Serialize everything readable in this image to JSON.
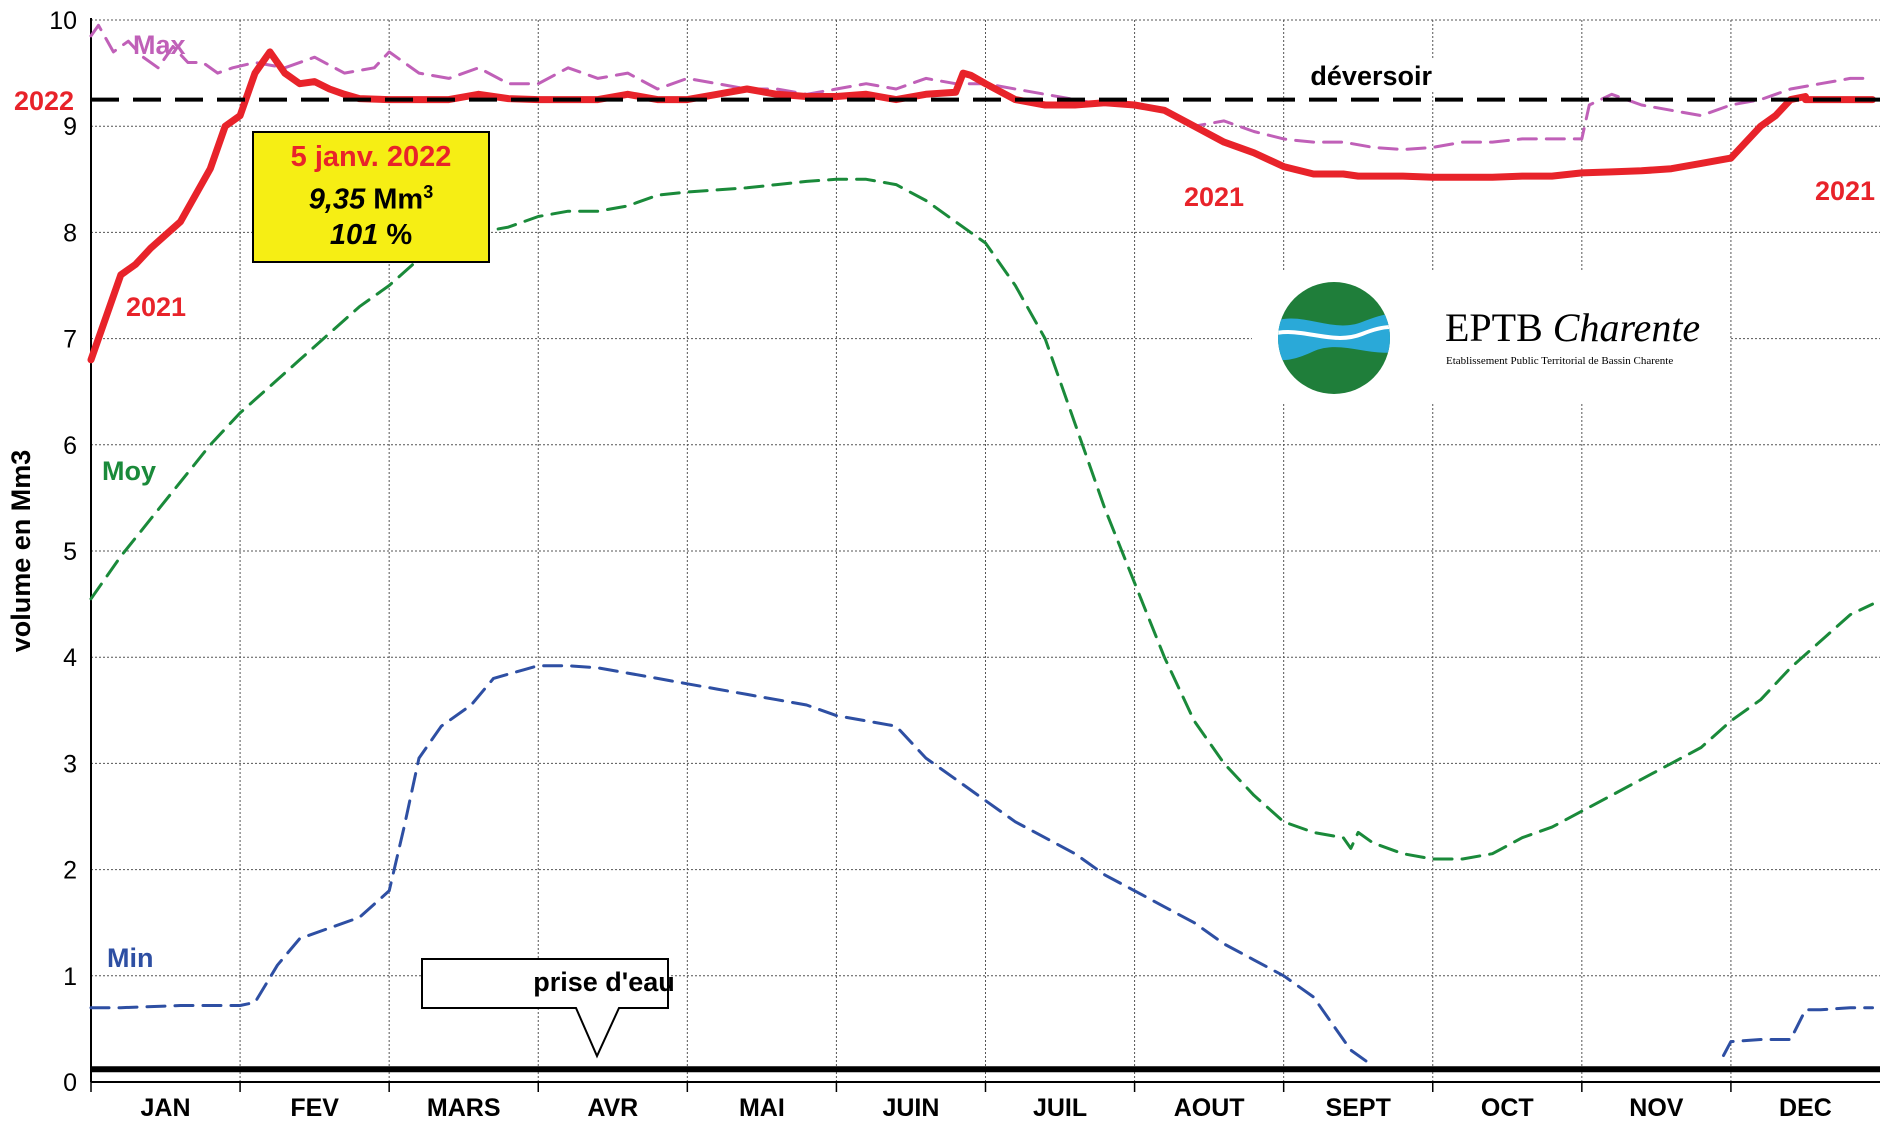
{
  "chart_data": {
    "type": "line",
    "ylabel": "volume en Mm3",
    "ylim": [
      0,
      10
    ],
    "yticks": [
      "0",
      "1",
      "2",
      "3",
      "4",
      "5",
      "6",
      "7",
      "8",
      "9",
      "10"
    ],
    "months": [
      "JAN",
      "FEV",
      "MARS",
      "AVR",
      "MAI",
      "JUIN",
      "JUIL",
      "AOUT",
      "SEPT",
      "OCT",
      "NOV",
      "DEC"
    ],
    "grid": true,
    "reference_lines": [
      {
        "label": "déversoir",
        "y": 9.25,
        "color": "#000000",
        "style": "dashed"
      },
      {
        "label": "prise d'eau",
        "y": 0.12,
        "color": "#000000",
        "style": "solid"
      }
    ],
    "series": [
      {
        "name": "Max",
        "color": "#c060b8",
        "style": "dashed",
        "x": [
          0.0,
          0.05,
          0.15,
          0.25,
          0.35,
          0.45,
          0.55,
          0.65,
          0.75,
          0.85,
          0.95,
          1.1,
          1.3,
          1.5,
          1.7,
          1.9,
          2.0,
          2.2,
          2.4,
          2.6,
          2.8,
          3.0,
          3.2,
          3.4,
          3.6,
          3.8,
          4.0,
          4.2,
          4.4,
          4.6,
          4.8,
          5.0,
          5.2,
          5.4,
          5.6,
          5.8,
          6.0,
          6.2,
          6.4,
          6.6,
          6.8,
          7.0,
          7.2,
          7.4,
          7.6,
          7.8,
          8.0,
          8.05,
          8.2,
          8.4,
          8.6,
          8.8,
          9.0,
          9.2,
          9.4,
          9.6,
          9.8,
          10.0,
          10.05,
          10.2,
          10.4,
          10.6,
          10.8,
          11.0,
          11.2,
          11.4,
          11.6,
          11.8,
          11.9
        ],
        "values": [
          9.85,
          9.95,
          9.7,
          9.8,
          9.65,
          9.55,
          9.75,
          9.6,
          9.6,
          9.5,
          9.55,
          9.6,
          9.55,
          9.65,
          9.5,
          9.55,
          9.7,
          9.5,
          9.45,
          9.55,
          9.4,
          9.4,
          9.55,
          9.45,
          9.5,
          9.35,
          9.45,
          9.4,
          9.35,
          9.35,
          9.3,
          9.35,
          9.4,
          9.35,
          9.45,
          9.4,
          9.4,
          9.35,
          9.3,
          9.25,
          9.2,
          9.2,
          9.15,
          9.0,
          9.05,
          8.95,
          8.88,
          8.87,
          8.85,
          8.85,
          8.8,
          8.78,
          8.8,
          8.85,
          8.85,
          8.88,
          8.88,
          8.88,
          9.2,
          9.3,
          9.2,
          9.15,
          9.1,
          9.2,
          9.25,
          9.35,
          9.4,
          9.45,
          9.45
        ]
      },
      {
        "name": "Moy",
        "color": "#1a8a3a",
        "style": "dashed",
        "x": [
          0.0,
          0.2,
          0.4,
          0.6,
          0.8,
          1.0,
          1.2,
          1.4,
          1.6,
          1.8,
          2.0,
          2.2,
          2.4,
          2.6,
          2.8,
          3.0,
          3.2,
          3.4,
          3.6,
          3.8,
          4.0,
          4.2,
          4.4,
          4.6,
          4.8,
          5.0,
          5.2,
          5.4,
          5.6,
          5.8,
          6.0,
          6.2,
          6.4,
          6.6,
          6.8,
          7.0,
          7.2,
          7.4,
          7.6,
          7.8,
          8.0,
          8.2,
          8.4,
          8.45,
          8.5,
          8.6,
          8.8,
          9.0,
          9.2,
          9.4,
          9.6,
          9.8,
          10.0,
          10.2,
          10.4,
          10.6,
          10.8,
          11.0,
          11.2,
          11.4,
          11.6,
          11.8,
          11.95
        ],
        "values": [
          4.55,
          4.95,
          5.3,
          5.65,
          6.0,
          6.3,
          6.55,
          6.8,
          7.05,
          7.3,
          7.5,
          7.75,
          7.9,
          8.0,
          8.05,
          8.15,
          8.2,
          8.2,
          8.25,
          8.35,
          8.38,
          8.4,
          8.42,
          8.45,
          8.48,
          8.5,
          8.5,
          8.45,
          8.3,
          8.1,
          7.9,
          7.5,
          7.0,
          6.2,
          5.4,
          4.7,
          4.0,
          3.4,
          3.0,
          2.7,
          2.45,
          2.35,
          2.3,
          2.2,
          2.35,
          2.25,
          2.15,
          2.1,
          2.1,
          2.15,
          2.3,
          2.4,
          2.55,
          2.7,
          2.85,
          3.0,
          3.15,
          3.4,
          3.6,
          3.9,
          4.15,
          4.4,
          4.5
        ]
      },
      {
        "name": "Min",
        "color": "#2e4fa3",
        "style": "dashed",
        "x": [
          0.0,
          0.2,
          0.4,
          0.6,
          0.8,
          1.0,
          1.1,
          1.25,
          1.4,
          1.6,
          1.8,
          2.0,
          2.1,
          2.2,
          2.35,
          2.55,
          2.7,
          2.9,
          3.0,
          3.2,
          3.4,
          3.6,
          3.8,
          4.0,
          4.2,
          4.4,
          4.6,
          4.8,
          5.0,
          5.2,
          5.4,
          5.6,
          5.8,
          6.0,
          6.2,
          6.4,
          6.6,
          6.8,
          7.0,
          7.2,
          7.4,
          7.6,
          7.8,
          8.0,
          8.2,
          8.35,
          8.45,
          8.6
        ],
        "values": [
          0.7,
          0.7,
          0.71,
          0.72,
          0.72,
          0.72,
          0.75,
          1.1,
          1.35,
          1.45,
          1.55,
          1.8,
          2.4,
          3.05,
          3.35,
          3.55,
          3.8,
          3.88,
          3.92,
          3.92,
          3.9,
          3.85,
          3.8,
          3.75,
          3.7,
          3.65,
          3.6,
          3.55,
          3.45,
          3.4,
          3.35,
          3.05,
          2.85,
          2.65,
          2.45,
          2.3,
          2.15,
          1.95,
          1.8,
          1.65,
          1.5,
          1.3,
          1.15,
          1.0,
          0.8,
          0.5,
          0.3,
          0.15
        ]
      },
      {
        "name": "Min",
        "color": "#2e4fa3",
        "style": "dashed",
        "x": [
          10.95,
          11.0,
          11.2,
          11.4,
          11.5,
          11.6,
          11.8,
          11.95
        ],
        "values": [
          0.25,
          0.38,
          0.4,
          0.4,
          0.68,
          0.68,
          0.7,
          0.7
        ]
      },
      {
        "name": "2021",
        "color": "#e8232a",
        "style": "solid",
        "x": [
          0.0,
          0.1,
          0.2,
          0.3,
          0.4,
          0.6,
          0.8,
          0.9,
          1.0,
          1.1,
          1.2,
          1.3,
          1.4,
          1.5,
          1.6,
          1.7,
          1.8,
          2.0,
          2.2,
          2.4,
          2.6,
          2.8,
          3.0,
          3.2,
          3.4,
          3.6,
          3.8,
          4.0,
          4.2,
          4.4,
          4.6,
          4.8,
          5.0,
          5.2,
          5.4,
          5.6,
          5.8,
          5.85,
          5.9,
          6.0,
          6.2,
          6.4,
          6.6,
          6.8,
          7.0,
          7.2,
          7.4,
          7.6,
          7.8,
          8.0,
          8.2,
          8.4,
          8.5,
          8.6,
          8.8,
          9.0,
          9.2,
          9.4,
          9.6,
          9.8,
          10.0,
          10.2,
          10.4,
          10.6,
          10.8,
          11.0,
          11.1,
          11.2,
          11.3,
          11.4,
          11.5
        ],
        "values": [
          6.8,
          7.2,
          7.6,
          7.7,
          7.85,
          8.1,
          8.6,
          9.0,
          9.1,
          9.5,
          9.7,
          9.5,
          9.4,
          9.42,
          9.35,
          9.3,
          9.26,
          9.25,
          9.25,
          9.25,
          9.3,
          9.26,
          9.25,
          9.25,
          9.25,
          9.3,
          9.25,
          9.25,
          9.3,
          9.35,
          9.3,
          9.28,
          9.28,
          9.3,
          9.25,
          9.3,
          9.32,
          9.5,
          9.48,
          9.4,
          9.25,
          9.2,
          9.2,
          9.22,
          9.2,
          9.15,
          9.0,
          8.85,
          8.75,
          8.62,
          8.55,
          8.55,
          8.53,
          8.53,
          8.53,
          8.52,
          8.52,
          8.52,
          8.53,
          8.53,
          8.56,
          8.57,
          8.58,
          8.6,
          8.65,
          8.7,
          8.85,
          9.0,
          9.1,
          9.25,
          9.28
        ]
      },
      {
        "name": "2022",
        "color": "#e8232a",
        "style": "solid",
        "x": [
          11.5,
          11.95
        ],
        "values": [
          9.25,
          9.25
        ]
      }
    ],
    "annotations": [
      {
        "text": "Max",
        "color": "#c060b8"
      },
      {
        "text": "Moy",
        "color": "#1a8a3a"
      },
      {
        "text": "Min",
        "color": "#2e4fa3"
      },
      {
        "text": "2022",
        "color": "#e8232a"
      },
      {
        "text": "2021",
        "color": "#e8232a"
      },
      {
        "text": "2021",
        "color": "#e8232a"
      },
      {
        "text": "2021",
        "color": "#e8232a"
      },
      {
        "text": "déversoir",
        "color": "#000000"
      },
      {
        "text": "prise d'eau",
        "color": "#000000"
      }
    ],
    "callout": {
      "date": "5 janv. 2022",
      "volume_value": "9,35",
      "volume_unit": "Mm",
      "volume_exp": "3",
      "percent_value": "101",
      "percent_unit": " %"
    }
  },
  "logo": {
    "name": "EPTB",
    "name_italic": "Charente",
    "subtitle": "Etablissement Public Territorial de Bassin Charente"
  }
}
